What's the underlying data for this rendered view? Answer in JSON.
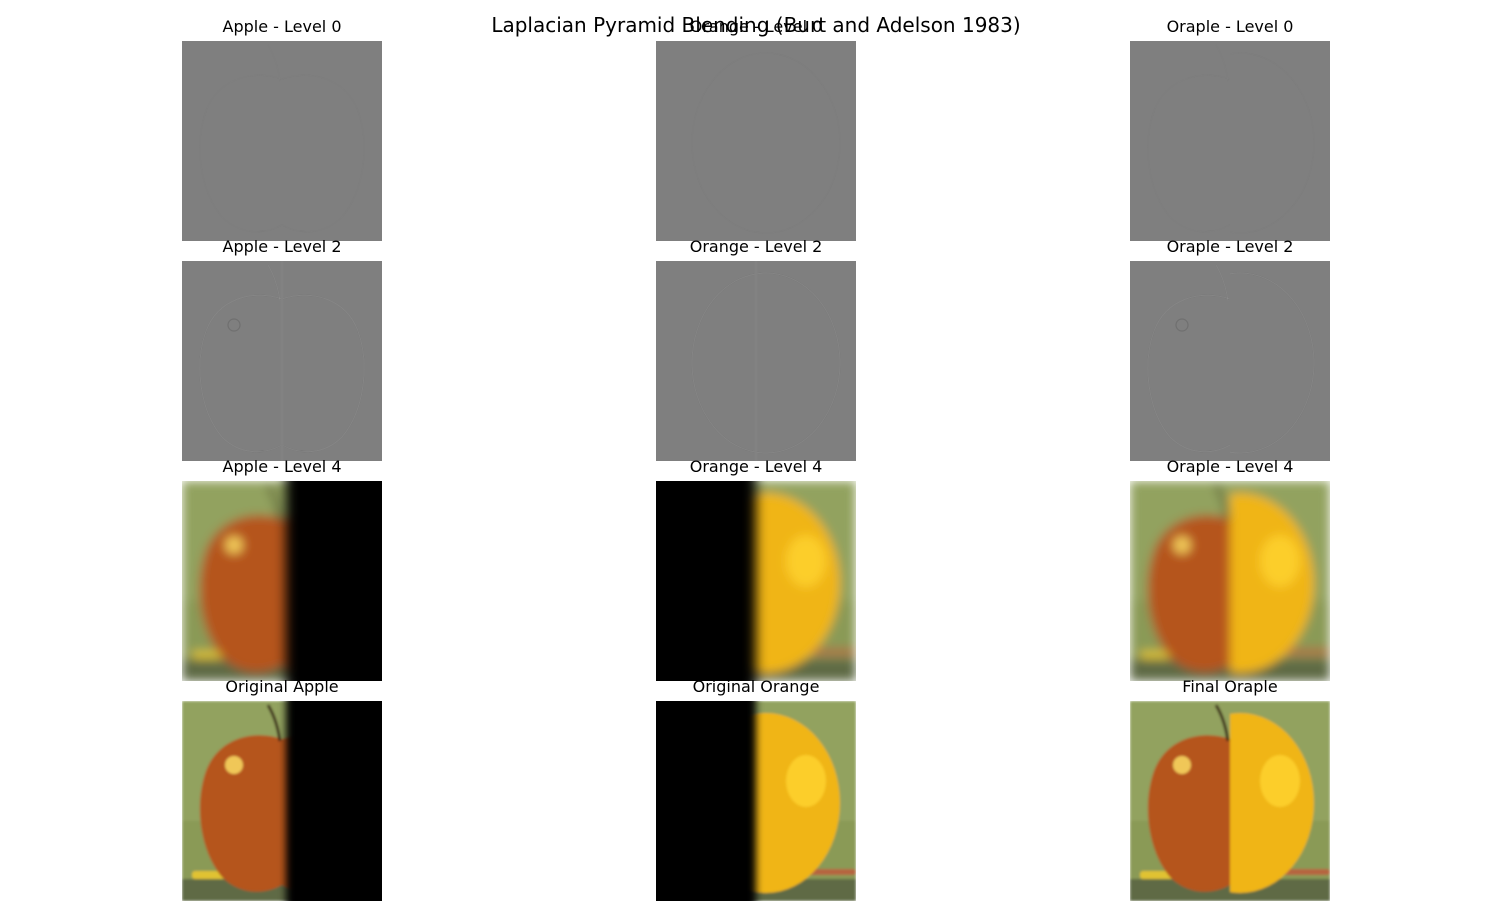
{
  "figure": {
    "title": "Laplacian Pyramid Blending (Burt and Adelson 1983)"
  },
  "rows": [
    {
      "level": "laplacian-0",
      "panels": [
        {
          "title": "Apple - Level 0",
          "kind": "laplacian",
          "content": "apple",
          "mask": "left"
        },
        {
          "title": "Orange - Level 0",
          "kind": "laplacian",
          "content": "orange",
          "mask": "right"
        },
        {
          "title": "Oraple - Level 0",
          "kind": "laplacian",
          "content": "oraple",
          "mask": "none"
        }
      ]
    },
    {
      "level": "laplacian-2",
      "panels": [
        {
          "title": "Apple - Level 2",
          "kind": "laplacian",
          "content": "apple",
          "mask": "left"
        },
        {
          "title": "Orange - Level 2",
          "kind": "laplacian",
          "content": "orange",
          "mask": "right"
        },
        {
          "title": "Oraple - Level 2",
          "kind": "laplacian",
          "content": "oraple",
          "mask": "none"
        }
      ]
    },
    {
      "level": "gaussian-4",
      "panels": [
        {
          "title": "Apple - Level 4",
          "kind": "blurred",
          "content": "apple",
          "mask": "left"
        },
        {
          "title": "Orange - Level 4",
          "kind": "blurred",
          "content": "orange",
          "mask": "right"
        },
        {
          "title": "Oraple - Level 4",
          "kind": "blurred",
          "content": "oraple",
          "mask": "none"
        }
      ]
    },
    {
      "level": "original",
      "panels": [
        {
          "title": "Original Apple",
          "kind": "photo",
          "content": "apple",
          "mask": "left"
        },
        {
          "title": "Original Orange",
          "kind": "photo",
          "content": "orange",
          "mask": "right"
        },
        {
          "title": "Final Oraple",
          "kind": "photo",
          "content": "oraple",
          "mask": "none"
        }
      ]
    }
  ],
  "colors": {
    "laplacian_gray": "#7f7f7f",
    "background_green": "#8a9a56",
    "apple_red": "#b5541a",
    "orange_yellow": "#f0b514",
    "mask_black": "#000000"
  }
}
